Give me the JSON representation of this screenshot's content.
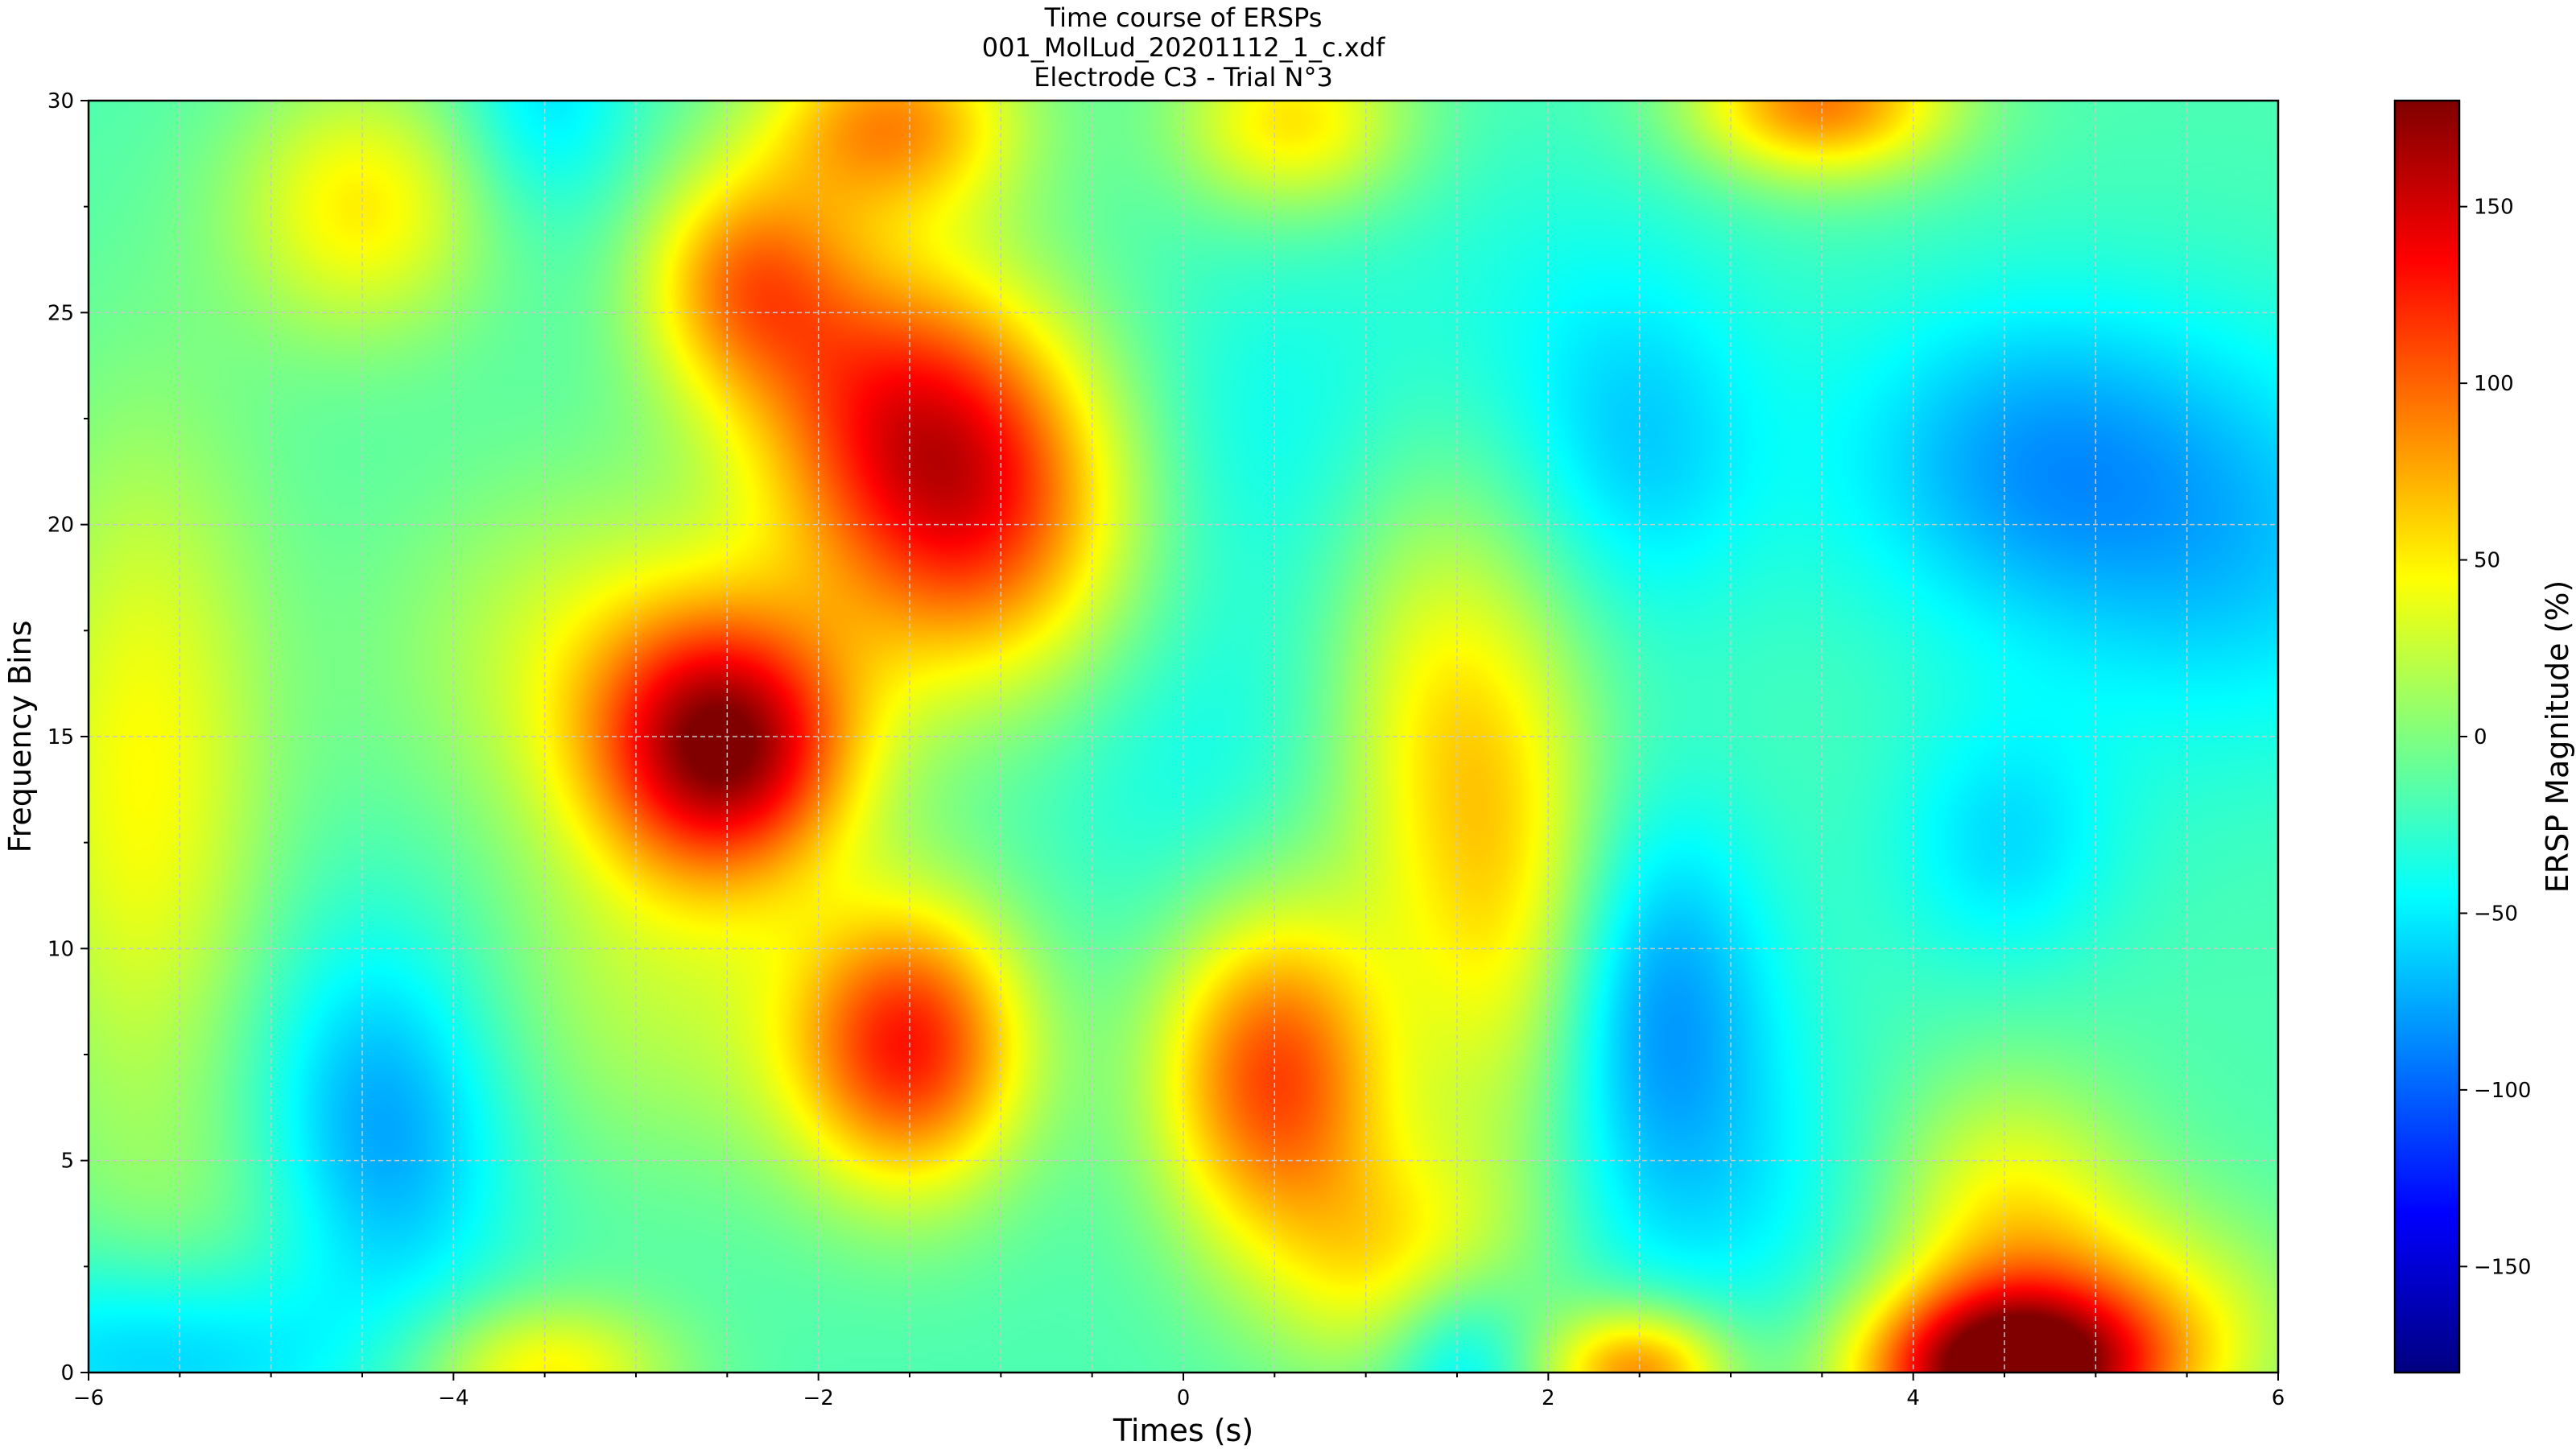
{
  "chart_data": {
    "type": "heatmap",
    "title_lines": [
      "Time course of ERSPs",
      "001_MolLud_20201112_1_c.xdf",
      "Electrode C3 - Trial N°3"
    ],
    "xlabel": "Times (s)",
    "ylabel": "Frequency Bins",
    "xlim": [
      -6,
      6
    ],
    "ylim": [
      0,
      30
    ],
    "x_ticks": [
      -6,
      -4,
      -2,
      0,
      2,
      4,
      6
    ],
    "x_tick_labels": [
      "−6",
      "−4",
      "−2",
      "0",
      "2",
      "4",
      "6"
    ],
    "y_ticks": [
      0,
      5,
      10,
      15,
      20,
      25,
      30
    ],
    "y_tick_labels": [
      "0",
      "5",
      "10",
      "15",
      "20",
      "25",
      "30"
    ],
    "grid": true,
    "colormap": "jet",
    "colorbar": {
      "label": "ERSP Magnitude (%)",
      "range": [
        -180,
        180
      ],
      "ticks": [
        150,
        100,
        50,
        0,
        -50,
        -100,
        -150
      ],
      "tick_labels": [
        "150",
        "100",
        "50",
        "0",
        "−50",
        "−100",
        "−150"
      ]
    },
    "baseline_value": -18,
    "features": [
      {
        "t": -2.5,
        "f": 14.7,
        "value": 165
      },
      {
        "t": -1.5,
        "f": 7.7,
        "value": 120
      },
      {
        "t": 0.5,
        "f": 7.0,
        "value": 110
      },
      {
        "t": 4.5,
        "f": 0.0,
        "value": 185
      },
      {
        "t": 4.5,
        "f": 3.5,
        "value": 50
      },
      {
        "t": -1.3,
        "f": 21.0,
        "value": 82
      },
      {
        "t": -1.7,
        "f": 23.5,
        "value": 55
      },
      {
        "t": -2.4,
        "f": 25.8,
        "value": 75
      },
      {
        "t": -1.6,
        "f": 29.5,
        "value": 82
      },
      {
        "t": -1.0,
        "f": 19.5,
        "value": 35
      },
      {
        "t": 0.6,
        "f": 29.5,
        "value": 55
      },
      {
        "t": 3.5,
        "f": 30.0,
        "value": 92
      },
      {
        "t": -4.5,
        "f": 27.5,
        "value": 50
      },
      {
        "t": -5.7,
        "f": 14.0,
        "value": 45
      },
      {
        "t": 1.8,
        "f": 11.5,
        "value": 48
      },
      {
        "t": 1.3,
        "f": 15.5,
        "value": 30
      },
      {
        "t": 2.5,
        "f": 0.0,
        "value": 90
      },
      {
        "t": -3.5,
        "f": 0.0,
        "value": 50
      },
      {
        "t": 1.2,
        "f": 2.5,
        "value": 45
      },
      {
        "t": 5.3,
        "f": 1.0,
        "value": 40
      },
      {
        "t": -3.2,
        "f": 17.0,
        "value": 30
      },
      {
        "t": -2.8,
        "f": 9.0,
        "value": 20
      },
      {
        "t": -5.0,
        "f": 2.5,
        "value": 10
      },
      {
        "t": -5.5,
        "f": 0.5,
        "value": -75
      },
      {
        "t": -4.4,
        "f": 7.0,
        "value": -62
      },
      {
        "t": -4.4,
        "f": 4.0,
        "value": -55
      },
      {
        "t": 2.6,
        "f": 8.8,
        "value": -78
      },
      {
        "t": 2.5,
        "f": 21.5,
        "value": -55
      },
      {
        "t": 4.6,
        "f": 21.5,
        "value": -72
      },
      {
        "t": 5.8,
        "f": 19.5,
        "value": -60
      },
      {
        "t": 4.5,
        "f": 12.5,
        "value": -55
      },
      {
        "t": -3.5,
        "f": 30.0,
        "value": -55
      },
      {
        "t": 1.5,
        "f": 0.5,
        "value": -70
      },
      {
        "t": 0.0,
        "f": 14.5,
        "value": -40
      },
      {
        "t": 0.4,
        "f": 22.0,
        "value": -40
      },
      {
        "t": -2.0,
        "f": 13.0,
        "value": -30
      },
      {
        "t": -2.5,
        "f": 19.5,
        "value": -20
      },
      {
        "t": 3.0,
        "f": 4.0,
        "value": -45
      },
      {
        "t": 2.0,
        "f": 25.0,
        "value": -35
      }
    ],
    "feature_widths": [
      [
        0.5,
        2.2
      ],
      [
        0.45,
        2.4
      ],
      [
        0.45,
        2.8
      ],
      [
        0.55,
        1.4
      ],
      [
        0.5,
        2.5
      ],
      [
        0.6,
        2.8
      ],
      [
        0.6,
        2.5
      ],
      [
        0.4,
        1.9
      ],
      [
        0.5,
        1.6
      ],
      [
        0.6,
        3.0
      ],
      [
        0.45,
        1.5
      ],
      [
        0.5,
        1.3
      ],
      [
        0.5,
        2.2
      ],
      [
        0.5,
        6.0
      ],
      [
        0.4,
        5.0
      ],
      [
        0.4,
        4.0
      ],
      [
        0.35,
        1.1
      ],
      [
        0.5,
        1.2
      ],
      [
        0.5,
        2.0
      ],
      [
        0.6,
        2.0
      ],
      [
        0.8,
        3.0
      ],
      [
        0.8,
        3.0
      ],
      [
        0.7,
        2.5
      ],
      [
        0.8,
        1.8
      ],
      [
        0.5,
        3.0
      ],
      [
        0.5,
        2.5
      ],
      [
        0.45,
        3.2
      ],
      [
        0.5,
        2.8
      ],
      [
        0.75,
        2.8
      ],
      [
        0.8,
        3.5
      ],
      [
        0.45,
        2.2
      ],
      [
        0.35,
        2.0
      ],
      [
        0.3,
        1.6
      ],
      [
        0.6,
        3.0
      ],
      [
        0.6,
        3.0
      ],
      [
        0.6,
        2.5
      ],
      [
        0.6,
        3.0
      ],
      [
        0.8,
        3.0
      ],
      [
        0.8,
        3.0
      ]
    ]
  }
}
